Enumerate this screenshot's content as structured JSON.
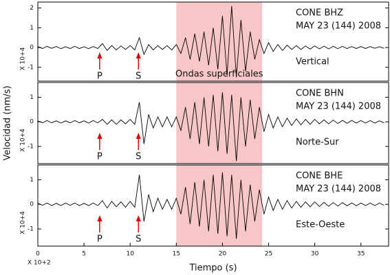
{
  "chart_data": [
    {
      "type": "line",
      "station": "CONE BHZ",
      "date": "MAY 23 (144) 2008",
      "component": "Vertical",
      "y_scale_label": "X 10+4",
      "shaded_region": [
        15,
        24.3
      ],
      "shaded_label": "Ondas superficiales",
      "shade_color": "#f7c6c6",
      "annotations": [
        {
          "text": "P",
          "x": 6.7
        },
        {
          "text": "S",
          "x": 10.9
        }
      ],
      "xlim": [
        0,
        38
      ],
      "ylim": [
        -1.7,
        2.3
      ],
      "yticks": [
        -1,
        0,
        1,
        2
      ],
      "color": "#000000",
      "x": [
        0,
        0.5,
        1,
        1.5,
        2,
        2.5,
        3,
        3.5,
        4,
        4.5,
        5,
        5.5,
        6,
        6.5,
        7,
        7.5,
        8,
        8.5,
        9,
        9.5,
        10,
        10.5,
        11,
        11.5,
        12,
        12.5,
        13,
        13.5,
        14,
        14.5,
        15,
        15.5,
        16,
        16.5,
        17,
        17.5,
        18,
        18.5,
        19,
        19.5,
        20,
        20.5,
        21,
        21.5,
        22,
        22.5,
        23,
        23.5,
        24,
        24.5,
        25,
        25.5,
        26,
        26.5,
        27,
        27.5,
        28,
        28.5,
        29,
        29.5,
        30,
        30.5,
        31,
        31.5,
        32,
        32.5,
        33,
        33.5,
        34,
        34.5,
        35,
        35.5,
        36,
        36.5,
        37,
        37.5
      ],
      "values": [
        0.05,
        -0.05,
        0.06,
        -0.04,
        0.05,
        -0.06,
        0.04,
        -0.05,
        0.06,
        -0.05,
        0.04,
        -0.06,
        0.05,
        -0.05,
        0.2,
        -0.15,
        0.1,
        -0.12,
        0.08,
        -0.1,
        0.1,
        -0.12,
        0.5,
        -0.35,
        0.15,
        -0.12,
        0.1,
        -0.1,
        0.1,
        -0.12,
        0.15,
        -0.3,
        0.5,
        -0.6,
        0.7,
        -0.7,
        0.8,
        -0.9,
        1.0,
        -1.1,
        1.6,
        -1.4,
        2.1,
        -1.5,
        1.4,
        -1.2,
        0.8,
        -0.6,
        0.4,
        -0.3,
        0.25,
        -0.2,
        0.15,
        -0.15,
        0.12,
        -0.1,
        0.1,
        -0.1,
        0.08,
        -0.08,
        0.08,
        -0.07,
        0.07,
        -0.07,
        0.06,
        -0.06,
        0.06,
        -0.05,
        0.05,
        -0.05,
        0.05,
        -0.05,
        0.05,
        -0.04,
        0.04,
        -0.04
      ]
    },
    {
      "type": "line",
      "station": "CONE BHN",
      "date": "MAY 23 (144) 2008",
      "component": "Norte-Sur",
      "y_scale_label": "X 10+4",
      "ylabel": "Velocidad (nm/s)",
      "shaded_region": [
        15,
        24.3
      ],
      "shade_color": "#f7c6c6",
      "annotations": [
        {
          "text": "P",
          "x": 6.7
        },
        {
          "text": "S",
          "x": 10.9
        }
      ],
      "xlim": [
        0,
        38
      ],
      "ylim": [
        -1.7,
        1.6
      ],
      "yticks": [
        -1,
        0,
        1
      ],
      "color": "#000000",
      "x": [
        0,
        0.5,
        1,
        1.5,
        2,
        2.5,
        3,
        3.5,
        4,
        4.5,
        5,
        5.5,
        6,
        6.5,
        7,
        7.5,
        8,
        8.5,
        9,
        9.5,
        10,
        10.5,
        11,
        11.5,
        12,
        12.5,
        13,
        13.5,
        14,
        14.5,
        15,
        15.5,
        16,
        16.5,
        17,
        17.5,
        18,
        18.5,
        19,
        19.5,
        20,
        20.5,
        21,
        21.5,
        22,
        22.5,
        23,
        23.5,
        24,
        24.5,
        25,
        25.5,
        26,
        26.5,
        27,
        27.5,
        28,
        28.5,
        29,
        29.5,
        30,
        30.5,
        31,
        31.5,
        32,
        32.5,
        33,
        33.5,
        34,
        34.5,
        35,
        35.5,
        36,
        36.5,
        37,
        37.5
      ],
      "values": [
        0.04,
        -0.04,
        0.05,
        -0.04,
        0.04,
        -0.05,
        0.04,
        -0.04,
        0.05,
        -0.04,
        0.04,
        -0.05,
        0.05,
        -0.04,
        0.1,
        -0.1,
        0.08,
        -0.1,
        0.08,
        -0.08,
        0.1,
        -0.1,
        0.8,
        -0.9,
        0.3,
        -0.25,
        0.2,
        -0.2,
        0.2,
        -0.2,
        0.2,
        -0.35,
        0.6,
        -0.7,
        0.8,
        -0.9,
        1.0,
        -1.0,
        1.1,
        -1.2,
        1.2,
        -1.3,
        1.1,
        -1.6,
        1.0,
        -1.0,
        0.9,
        -0.7,
        0.6,
        -0.4,
        0.3,
        -0.25,
        0.2,
        -0.2,
        0.15,
        -0.15,
        0.12,
        -0.12,
        0.1,
        -0.1,
        0.1,
        -0.08,
        0.08,
        -0.08,
        0.07,
        -0.07,
        0.06,
        -0.06,
        0.06,
        -0.05,
        0.05,
        -0.05,
        0.05,
        -0.05,
        0.04,
        -0.04
      ]
    },
    {
      "type": "line",
      "station": "CONE BHE",
      "date": "MAY 23 (144) 2008",
      "component": "Este-Oeste",
      "y_scale_label": "X 10+4",
      "x_scale_label": "X 10+2",
      "xlabel": "Tiempo (s)",
      "shaded_region": [
        15,
        24.3
      ],
      "shade_color": "#f7c6c6",
      "annotations": [
        {
          "text": "P",
          "x": 6.7
        },
        {
          "text": "S",
          "x": 10.9
        }
      ],
      "xlim": [
        0,
        38
      ],
      "ylim": [
        -1.7,
        1.6
      ],
      "yticks": [
        -1,
        0,
        1
      ],
      "xticks": [
        0,
        5,
        10,
        15,
        20,
        25,
        30,
        35
      ],
      "color": "#000000",
      "x": [
        0,
        0.5,
        1,
        1.5,
        2,
        2.5,
        3,
        3.5,
        4,
        4.5,
        5,
        5.5,
        6,
        6.5,
        7,
        7.5,
        8,
        8.5,
        9,
        9.5,
        10,
        10.5,
        11,
        11.5,
        12,
        12.5,
        13,
        13.5,
        14,
        14.5,
        15,
        15.5,
        16,
        16.5,
        17,
        17.5,
        18,
        18.5,
        19,
        19.5,
        20,
        20.5,
        21,
        21.5,
        22,
        22.5,
        23,
        23.5,
        24,
        24.5,
        25,
        25.5,
        26,
        26.5,
        27,
        27.5,
        28,
        28.5,
        29,
        29.5,
        30,
        30.5,
        31,
        31.5,
        32,
        32.5,
        33,
        33.5,
        34,
        34.5,
        35,
        35.5,
        36,
        36.5,
        37,
        37.5
      ],
      "values": [
        0.05,
        -0.04,
        0.05,
        -0.05,
        0.04,
        -0.05,
        0.05,
        -0.04,
        0.05,
        -0.05,
        0.04,
        -0.05,
        0.05,
        -0.05,
        0.15,
        -0.15,
        0.12,
        -0.1,
        0.1,
        -0.12,
        0.12,
        -0.12,
        1.2,
        -0.7,
        0.4,
        -0.3,
        0.25,
        -0.2,
        0.2,
        -0.2,
        0.25,
        -0.4,
        0.7,
        -0.8,
        0.9,
        -0.9,
        1.0,
        -1.1,
        1.2,
        -1.2,
        1.3,
        -1.3,
        1.2,
        -1.4,
        1.0,
        -1.1,
        0.8,
        -0.7,
        0.6,
        -0.4,
        0.3,
        -0.25,
        0.2,
        -0.2,
        0.15,
        -0.15,
        0.12,
        -0.12,
        0.1,
        -0.1,
        0.1,
        -0.09,
        0.08,
        -0.08,
        0.07,
        -0.07,
        0.07,
        -0.06,
        0.06,
        -0.06,
        0.05,
        -0.05,
        0.05,
        -0.05,
        0.05,
        -0.04
      ]
    }
  ]
}
